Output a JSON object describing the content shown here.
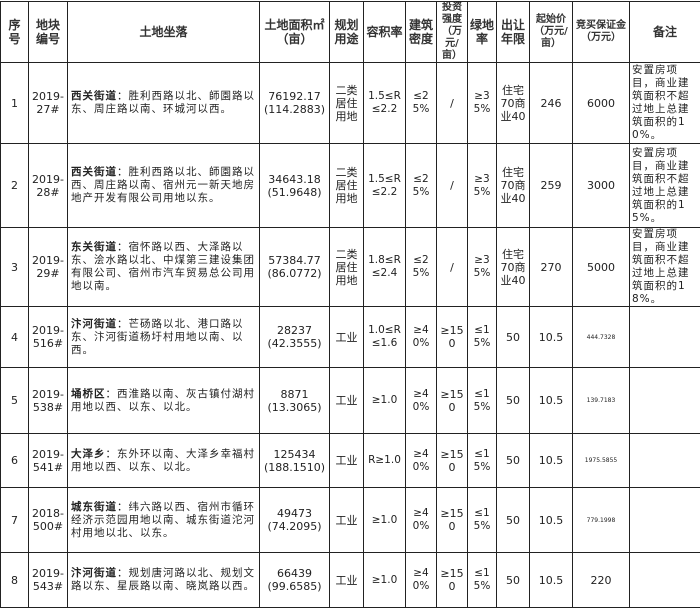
{
  "headers": [
    "序号",
    "地块编号",
    "土地坐落",
    "土地面积㎡（亩）",
    "规划用途",
    "容积率",
    "建筑密度",
    "投资强度（万元/亩）",
    "绿地率",
    "出让年限",
    "起始价（万元/亩）",
    "竞买保证金（万元）",
    "备注"
  ],
  "rows": [
    {
      "no": "1",
      "code": "2019-27#",
      "district": "西关街道",
      "location": "：胜利西路以北、師園路以东、周庄路以南、环城河以西。",
      "area": "76192.17",
      "mu": "(114.2883)",
      "use": "二类居住用地",
      "far": "1.5≤R≤2.2",
      "density": "≤25%",
      "invest": "/",
      "green": "≥35%",
      "term": "住宅70商业40",
      "price": "246",
      "deposit": "6000",
      "note": "安置房项目，商业建筑面积不超过地上总建筑面积的10%。"
    },
    {
      "no": "2",
      "code": "2019-28#",
      "district": "西关街道",
      "location": "：胜利西路以北、師園路以西、周庄路以南、宿州元一新天地房地产开发有限公司用地以东。",
      "area": "34643.18",
      "mu": "(51.9648)",
      "use": "二类居住用地",
      "far": "1.5≤R≤2.2",
      "density": "≤25%",
      "invest": "/",
      "green": "≥35%",
      "term": "住宅70商业40",
      "price": "259",
      "deposit": "3000",
      "note": "安置房项目，商业建筑面积不超过地上总建筑面积的15%。"
    },
    {
      "no": "3",
      "code": "2019-29#",
      "district": "东关街道",
      "location": "：宿怀路以西、大泽路以东、浍水路以北、中煤第三建设集团有限公司、宿州市汽车贸易总公司用地以南。",
      "area": "57384.77",
      "mu": "(86.0772)",
      "use": "二类居住用地",
      "far": "1.8≤R≤2.4",
      "density": "≤25%",
      "invest": "/",
      "green": "≥35%",
      "term": "住宅70商业40",
      "price": "270",
      "deposit": "5000",
      "note": "安置房项目，商业建筑面积不超过地上总建筑面积的18%。"
    },
    {
      "no": "4",
      "code": "2019-516#",
      "district": "汴河街道",
      "location": "：芒砀路以北、港口路以东、汴河街道杨圩村用地以南、以西。",
      "area": "28237",
      "mu": "(42.3555)",
      "use": "工业",
      "far": "1.0≤R≤1.6",
      "density": "≥40%",
      "invest": "≥150",
      "green": "≤15%",
      "term": "50",
      "price": "10.5",
      "deposit": "444.7328",
      "note": ""
    },
    {
      "no": "5",
      "code": "2019-538#",
      "district": "埇桥区",
      "location": "：西淮路以南、灰古镇付湖村用地以西、以东、以北。",
      "area": "8871",
      "mu": "(13.3065)",
      "use": "工业",
      "far": "≥1.0",
      "density": "≥40%",
      "invest": "≥150",
      "green": "≤15%",
      "term": "50",
      "price": "10.5",
      "deposit": "139.7183",
      "note": ""
    },
    {
      "no": "6",
      "code": "2019-541#",
      "district": "大泽乡",
      "location": "：东外环以南、大泽乡幸福村用地以西、以东、以北。",
      "area": "125434",
      "mu": "(188.1510)",
      "use": "工业",
      "far": "R≥1.0",
      "density": "≥40%",
      "invest": "≥150",
      "green": "≤15%",
      "term": "50",
      "price": "10.5",
      "deposit": "1975.5855",
      "note": ""
    },
    {
      "no": "7",
      "code": "2018-500#",
      "district": "城东街道",
      "location": "：纬六路以西、宿州市循环经济示范园用地以南、城东街道沱河村用地以北、以东。",
      "area": "49473",
      "mu": "(74.2095)",
      "use": "工业",
      "far": "≥1.0",
      "density": "≥40%",
      "invest": "≥150",
      "green": "≤15%",
      "term": "50",
      "price": "10.5",
      "deposit": "779.1998",
      "note": ""
    },
    {
      "no": "8",
      "code": "2019-543#",
      "district": "汴河街道",
      "location": "：规划唐河路以北、规划文路以东、星辰路以南、晓岚路以西。",
      "area": "66439",
      "mu": "(99.6585)",
      "use": "工业",
      "far": "≥1.0",
      "density": "≥40%",
      "invest": "≥150",
      "green": "≤15%",
      "term": "50",
      "price": "10.5",
      "deposit": "220",
      "note": ""
    }
  ]
}
